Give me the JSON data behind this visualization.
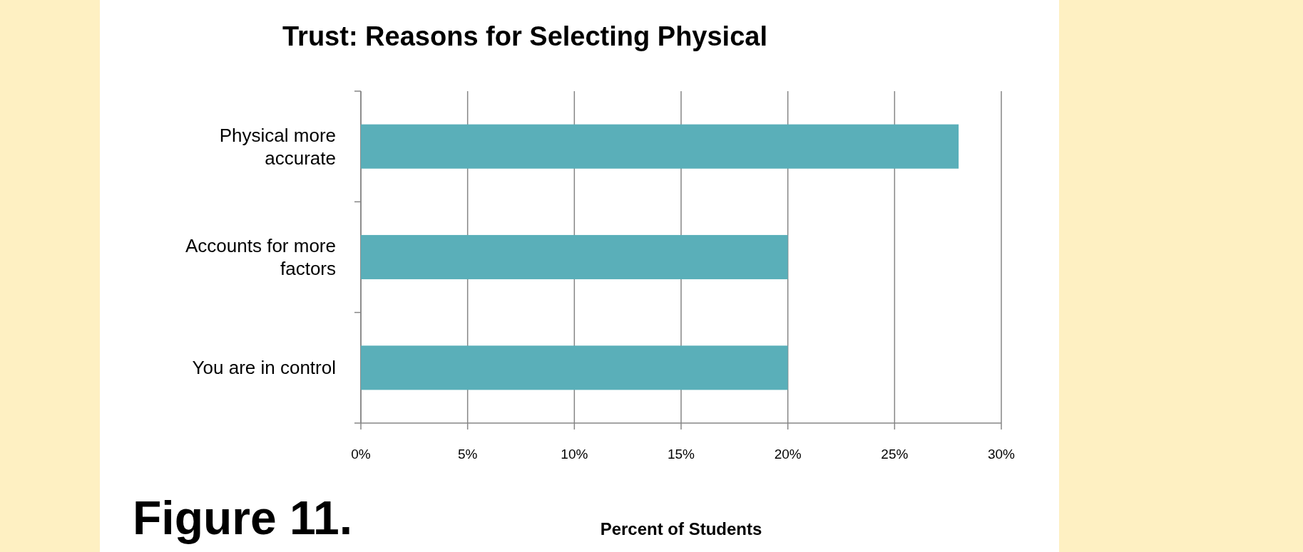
{
  "chart_data": {
    "type": "bar",
    "orientation": "horizontal",
    "title": "Trust: Reasons for Selecting Physical",
    "xlabel": "Percent of Students",
    "categories": [
      "Physical more accurate",
      "Accounts for more factors",
      "You are in control"
    ],
    "values": [
      28,
      20,
      20
    ],
    "color": "#5aafb9",
    "xlim": [
      0,
      30
    ],
    "xticks": [
      {
        "value": 0,
        "label": "0%"
      },
      {
        "value": 5,
        "label": "5%"
      },
      {
        "value": 10,
        "label": "10%"
      },
      {
        "value": 15,
        "label": "15%"
      },
      {
        "value": 20,
        "label": "20%"
      },
      {
        "value": 25,
        "label": "25%"
      },
      {
        "value": 30,
        "label": "30%"
      }
    ],
    "grid": "x",
    "annotations": [
      "Figure 11."
    ]
  }
}
